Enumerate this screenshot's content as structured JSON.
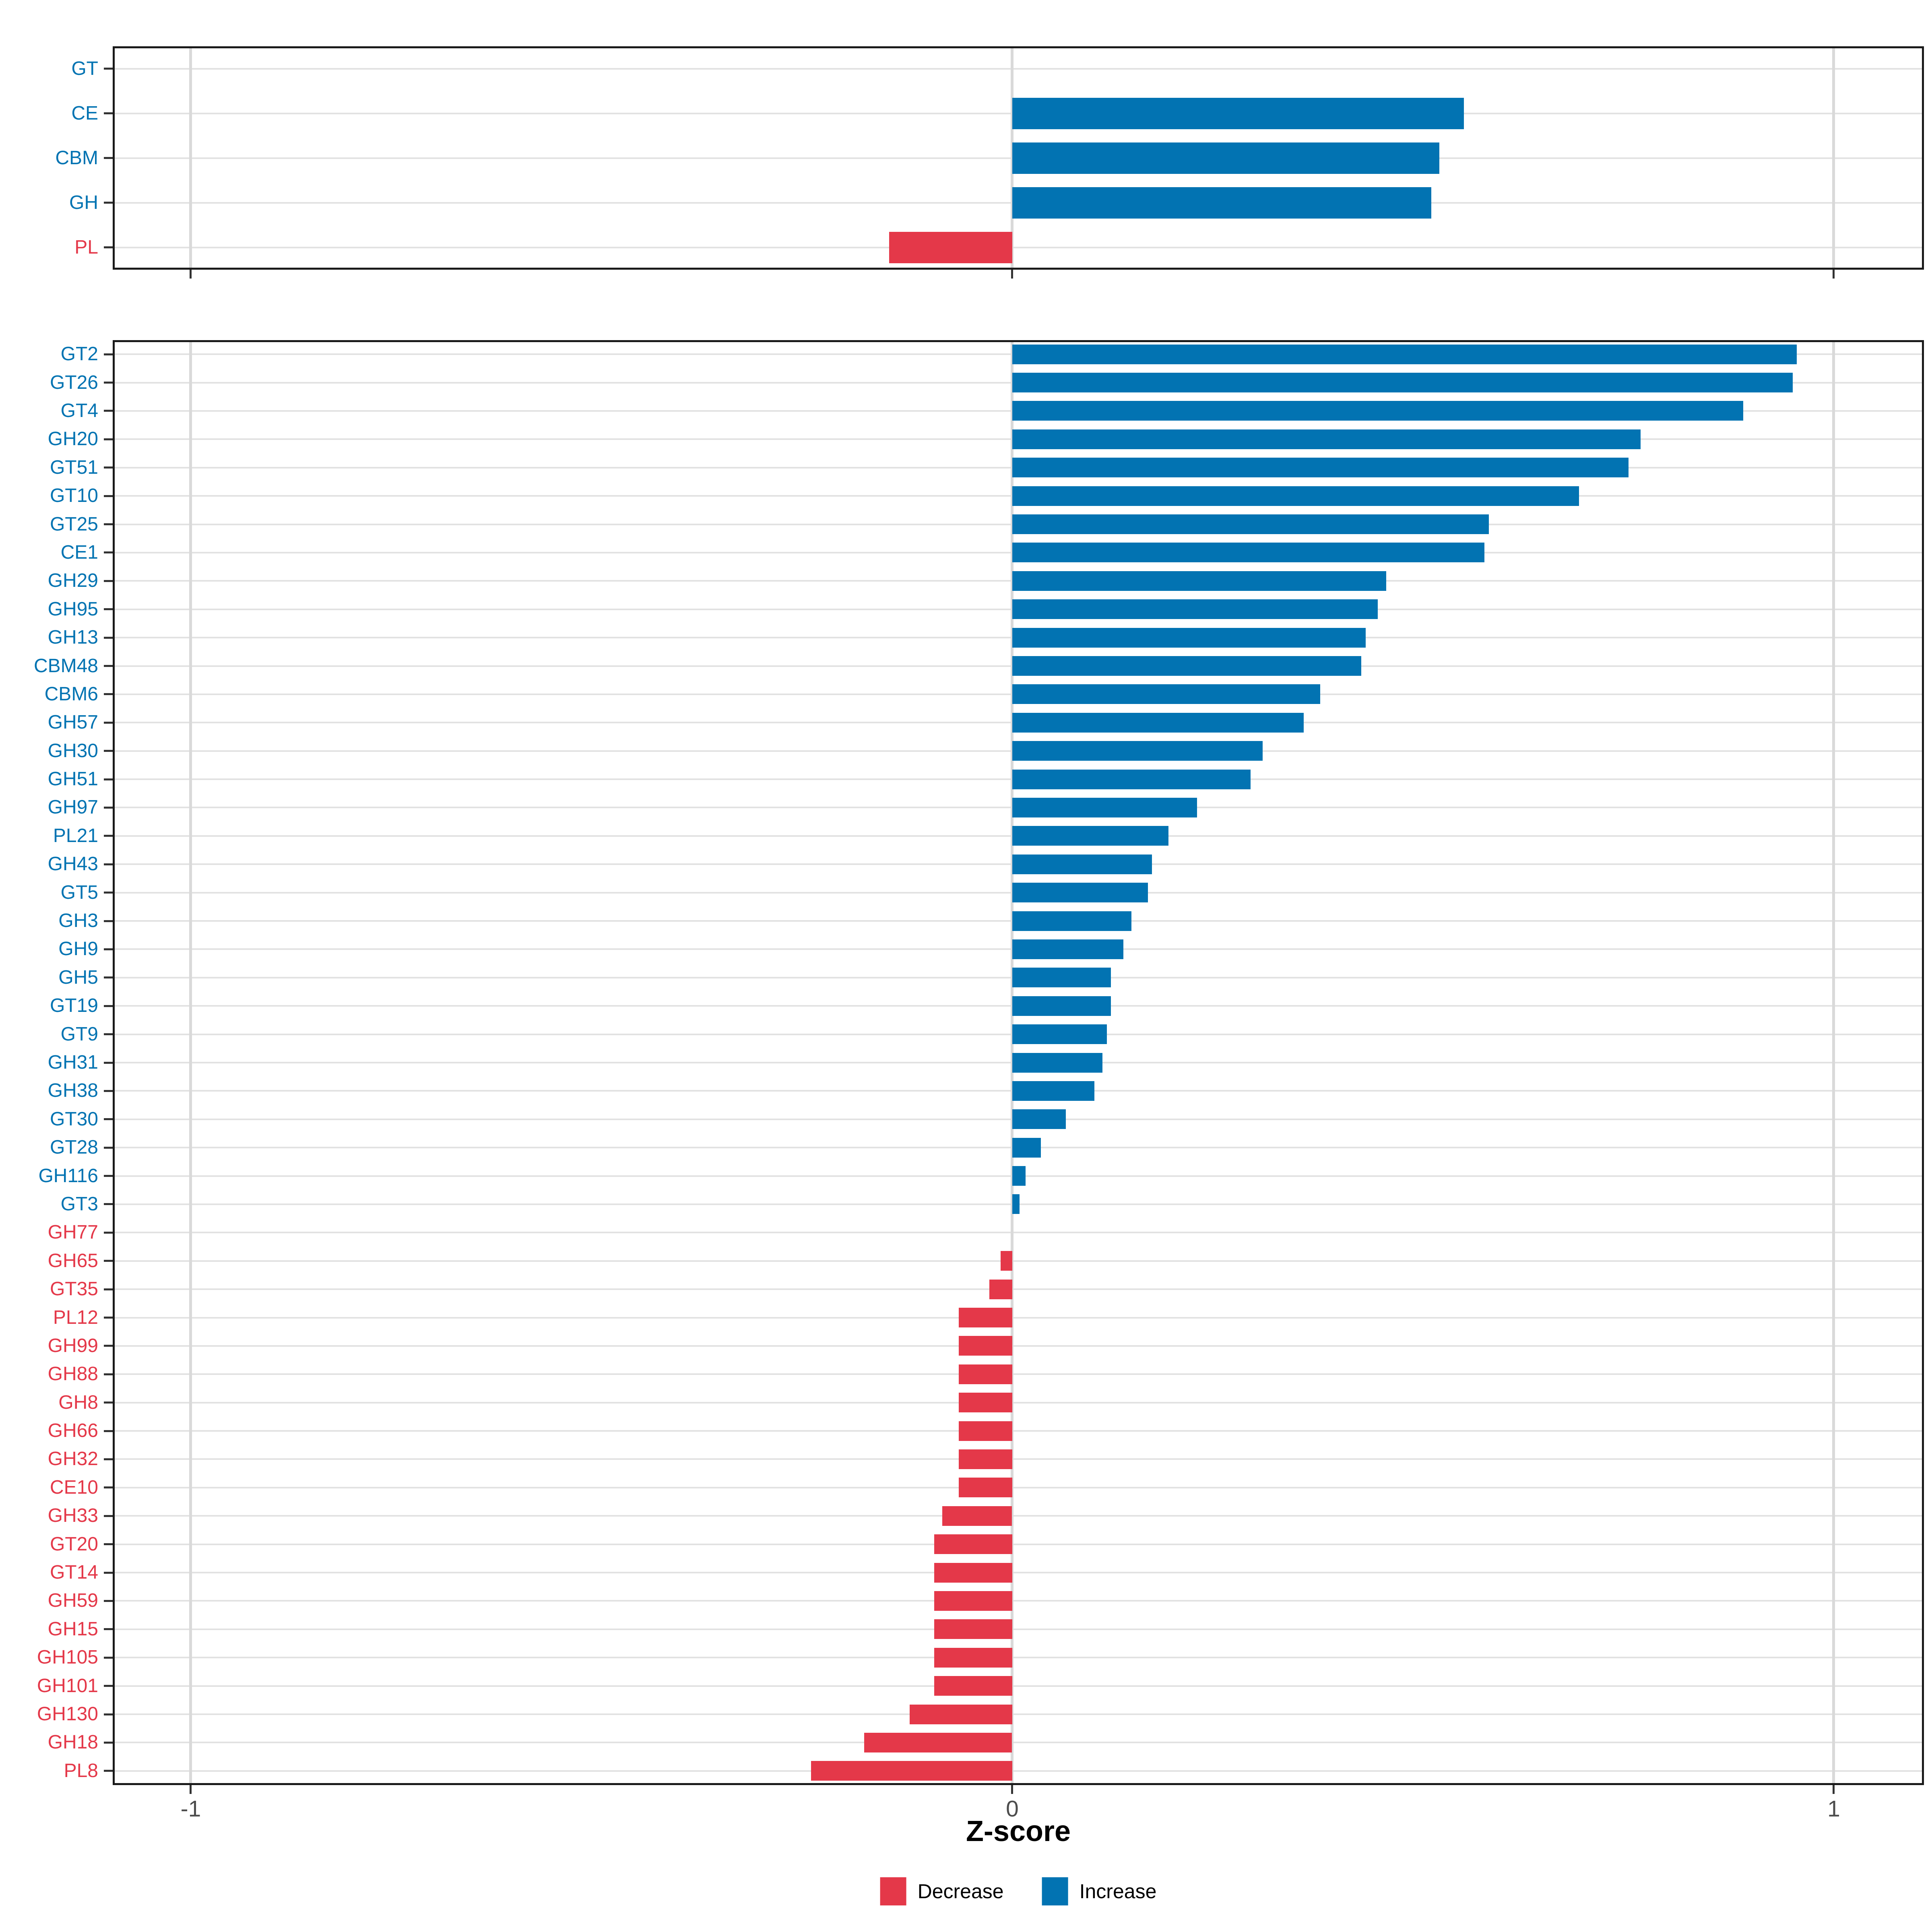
{
  "figure": {
    "background": "#FFFFFF"
  },
  "axis": {
    "title": "Z-score",
    "ticks": [
      -1,
      0,
      1
    ],
    "tick_labels": [
      "-1",
      "0",
      "1"
    ],
    "range": [
      -1.095,
      1.11
    ]
  },
  "colors": {
    "increase": "#0273B2",
    "decrease": "#E43849",
    "grid_horizontal": "#E2E2E2",
    "grid_vertical": "#D9D9D9",
    "panel_border": "#1A1A1A",
    "tick_mark": "#333333",
    "tick_label": "#4D4D4D"
  },
  "legend": {
    "items": [
      {
        "label": "Decrease",
        "direction": "decrease"
      },
      {
        "label": "Increase",
        "direction": "increase"
      }
    ]
  },
  "chart_data": [
    {
      "panel": "top",
      "type": "bar",
      "orientation": "horizontal",
      "title": "",
      "xlabel": "Z-score",
      "ylabel": "",
      "xlim": [
        -1.095,
        1.11
      ],
      "grid": true,
      "categories": [
        "GT",
        "CE",
        "CBM",
        "GH",
        "PL"
      ],
      "values": [
        0,
        0.55,
        0.52,
        0.51,
        -0.15
      ],
      "directions": [
        "increase",
        "increase",
        "increase",
        "increase",
        "decrease"
      ]
    },
    {
      "panel": "bottom",
      "type": "bar",
      "orientation": "horizontal",
      "title": "",
      "xlabel": "Z-score",
      "ylabel": "",
      "xlim": [
        -1.095,
        1.11
      ],
      "grid": true,
      "categories": [
        "GT2",
        "GT26",
        "GT4",
        "GH20",
        "GT51",
        "GT10",
        "GT25",
        "CE1",
        "GH29",
        "GH95",
        "GH13",
        "CBM48",
        "CBM6",
        "GH57",
        "GH30",
        "GH51",
        "GH97",
        "PL21",
        "GH43",
        "GT5",
        "GH3",
        "GH9",
        "GH5",
        "GT19",
        "GT9",
        "GH31",
        "GH38",
        "GT30",
        "GT28",
        "GH116",
        "GT3",
        "GH77",
        "GH65",
        "GT35",
        "PL12",
        "GH99",
        "GH88",
        "GH8",
        "GH66",
        "GH32",
        "CE10",
        "GH33",
        "GT20",
        "GT14",
        "GH59",
        "GH15",
        "GH105",
        "GH101",
        "GH130",
        "GH18",
        "PL8"
      ],
      "values": [
        0.955,
        0.95,
        0.89,
        0.765,
        0.75,
        0.69,
        0.58,
        0.575,
        0.455,
        0.445,
        0.43,
        0.425,
        0.375,
        0.355,
        0.305,
        0.29,
        0.225,
        0.19,
        0.17,
        0.165,
        0.145,
        0.135,
        0.12,
        0.12,
        0.115,
        0.11,
        0.1,
        0.065,
        0.035,
        0.016,
        0.009,
        0,
        -0.014,
        -0.028,
        -0.065,
        -0.065,
        -0.065,
        -0.065,
        -0.065,
        -0.065,
        -0.065,
        -0.085,
        -0.095,
        -0.095,
        -0.095,
        -0.095,
        -0.095,
        -0.095,
        -0.125,
        -0.18,
        -0.245
      ],
      "directions": [
        "increase",
        "increase",
        "increase",
        "increase",
        "increase",
        "increase",
        "increase",
        "increase",
        "increase",
        "increase",
        "increase",
        "increase",
        "increase",
        "increase",
        "increase",
        "increase",
        "increase",
        "increase",
        "increase",
        "increase",
        "increase",
        "increase",
        "increase",
        "increase",
        "increase",
        "increase",
        "increase",
        "increase",
        "increase",
        "increase",
        "increase",
        "decrease",
        "decrease",
        "decrease",
        "decrease",
        "decrease",
        "decrease",
        "decrease",
        "decrease",
        "decrease",
        "decrease",
        "decrease",
        "decrease",
        "decrease",
        "decrease",
        "decrease",
        "decrease",
        "decrease",
        "decrease",
        "decrease",
        "decrease"
      ]
    }
  ]
}
